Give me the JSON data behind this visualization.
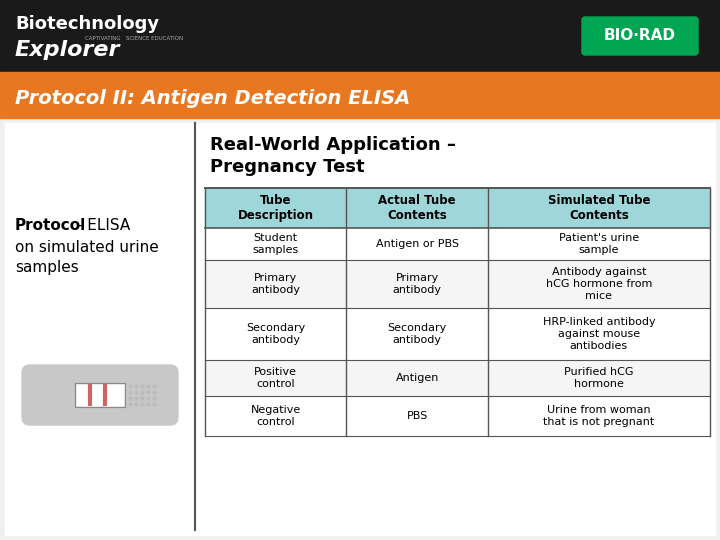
{
  "header_bg": "#1a1a1a",
  "orange_bar_color": "#E87722",
  "title_text": "Protocol II: Antigen Detection ELISA",
  "title_color": "#E87722",
  "slide_bg": "#ffffff",
  "left_text_bold": "Protocol",
  "left_text_normal": " - ELISA\non simulated urine\nsamples",
  "rwa_title_line1": "Real-World Application –",
  "rwa_title_line2": "Pregnancy Test",
  "table_header_bg": "#9fd6d9",
  "table_border_color": "#555555",
  "col_headers": [
    "Tube\nDescription",
    "Actual Tube\nContents",
    "Simulated Tube\nContents"
  ],
  "rows": [
    [
      "Student\nsamples",
      "Antigen or PBS",
      "Patient's urine\nsample"
    ],
    [
      "Primary\nantibody",
      "Primary\nantibody",
      "Antibody against\nhCG hormone from\nmice"
    ],
    [
      "Secondary\nantibody",
      "Secondary\nantibody",
      "HRP-linked antibody\nagainst mouse\nantibodies"
    ],
    [
      "Positive\ncontrol",
      "Antigen",
      "Purified hCG\nhormone"
    ],
    [
      "Negative\ncontrol",
      "PBS",
      "Urine from woman\nthat is not pregnant"
    ]
  ],
  "row_bg_odd": "#ffffff",
  "row_bg_even": "#f5f5f5",
  "left_divider_color": "#555555"
}
